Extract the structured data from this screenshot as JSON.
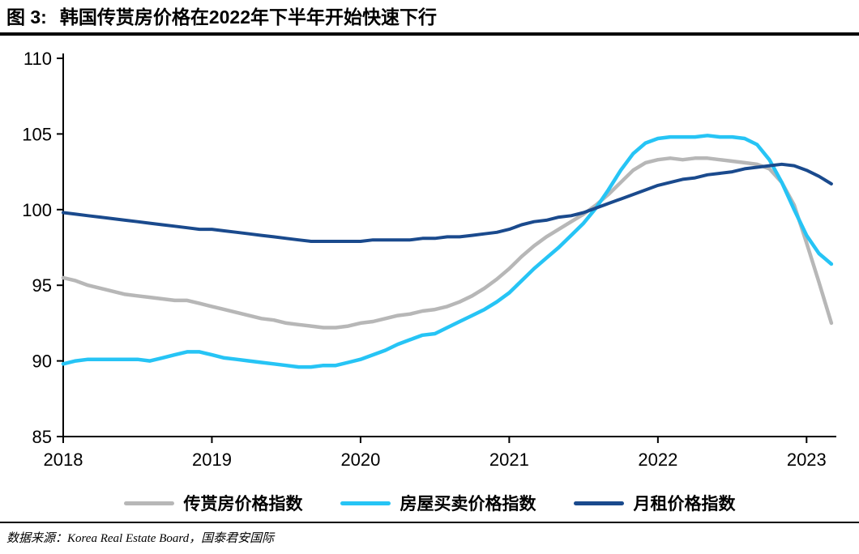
{
  "title": {
    "prefix": "图 3:",
    "text": "韩国传贳房价格在2022年下半年开始快速下行"
  },
  "source": {
    "label": "数据来源：",
    "text": "Korea Real Estate Board，国泰君安国际"
  },
  "chart_data": {
    "type": "line",
    "title": "韩国传贳房价格在2022年下半年开始快速下行",
    "x_unit": "monthly, decimal years",
    "x_start": 2018.0,
    "x_step": 0.08333,
    "xlim": [
      2018,
      2023.2
    ],
    "ylim": [
      85,
      110
    ],
    "xticks": [
      2018,
      2019,
      2020,
      2021,
      2022,
      2023
    ],
    "yticks": [
      85,
      90,
      95,
      100,
      105,
      110
    ],
    "grid": false,
    "legend_position": "bottom",
    "axis_color": "#000000",
    "series": [
      {
        "name": "传贳房价格指数",
        "color": "#b7b7b7",
        "width": 4.5,
        "values": [
          95.5,
          95.3,
          95.0,
          94.8,
          94.6,
          94.4,
          94.3,
          94.2,
          94.1,
          94.0,
          94.0,
          93.8,
          93.6,
          93.4,
          93.2,
          93.0,
          92.8,
          92.7,
          92.5,
          92.4,
          92.3,
          92.2,
          92.2,
          92.3,
          92.5,
          92.6,
          92.8,
          93.0,
          93.1,
          93.3,
          93.4,
          93.6,
          93.9,
          94.3,
          94.8,
          95.4,
          96.1,
          96.9,
          97.6,
          98.2,
          98.7,
          99.2,
          99.7,
          100.3,
          101.0,
          101.8,
          102.6,
          103.1,
          103.3,
          103.4,
          103.3,
          103.4,
          103.4,
          103.3,
          103.2,
          103.1,
          103.0,
          102.7,
          101.8,
          100.3,
          97.8,
          95.2,
          92.5
        ]
      },
      {
        "name": "房屋买卖价格指数",
        "color": "#26c4f5",
        "width": 4.5,
        "values": [
          89.8,
          90.0,
          90.1,
          90.1,
          90.1,
          90.1,
          90.1,
          90.0,
          90.2,
          90.4,
          90.6,
          90.6,
          90.4,
          90.2,
          90.1,
          90.0,
          89.9,
          89.8,
          89.7,
          89.6,
          89.6,
          89.7,
          89.7,
          89.9,
          90.1,
          90.4,
          90.7,
          91.1,
          91.4,
          91.7,
          91.8,
          92.2,
          92.6,
          93.0,
          93.4,
          93.9,
          94.5,
          95.3,
          96.1,
          96.8,
          97.5,
          98.3,
          99.1,
          100.1,
          101.3,
          102.6,
          103.7,
          104.4,
          104.7,
          104.8,
          104.8,
          104.8,
          104.9,
          104.8,
          104.8,
          104.7,
          104.3,
          103.3,
          101.8,
          100.0,
          98.3,
          97.1,
          96.4
        ]
      },
      {
        "name": "月租价格指数",
        "color": "#1a4a8d",
        "width": 4,
        "values": [
          99.8,
          99.7,
          99.6,
          99.5,
          99.4,
          99.3,
          99.2,
          99.1,
          99.0,
          98.9,
          98.8,
          98.7,
          98.7,
          98.6,
          98.5,
          98.4,
          98.3,
          98.2,
          98.1,
          98.0,
          97.9,
          97.9,
          97.9,
          97.9,
          97.9,
          98.0,
          98.0,
          98.0,
          98.0,
          98.1,
          98.1,
          98.2,
          98.2,
          98.3,
          98.4,
          98.5,
          98.7,
          99.0,
          99.2,
          99.3,
          99.5,
          99.6,
          99.8,
          100.1,
          100.4,
          100.7,
          101.0,
          101.3,
          101.6,
          101.8,
          102.0,
          102.1,
          102.3,
          102.4,
          102.5,
          102.7,
          102.8,
          102.9,
          103.0,
          102.9,
          102.6,
          102.2,
          101.7
        ]
      }
    ]
  }
}
